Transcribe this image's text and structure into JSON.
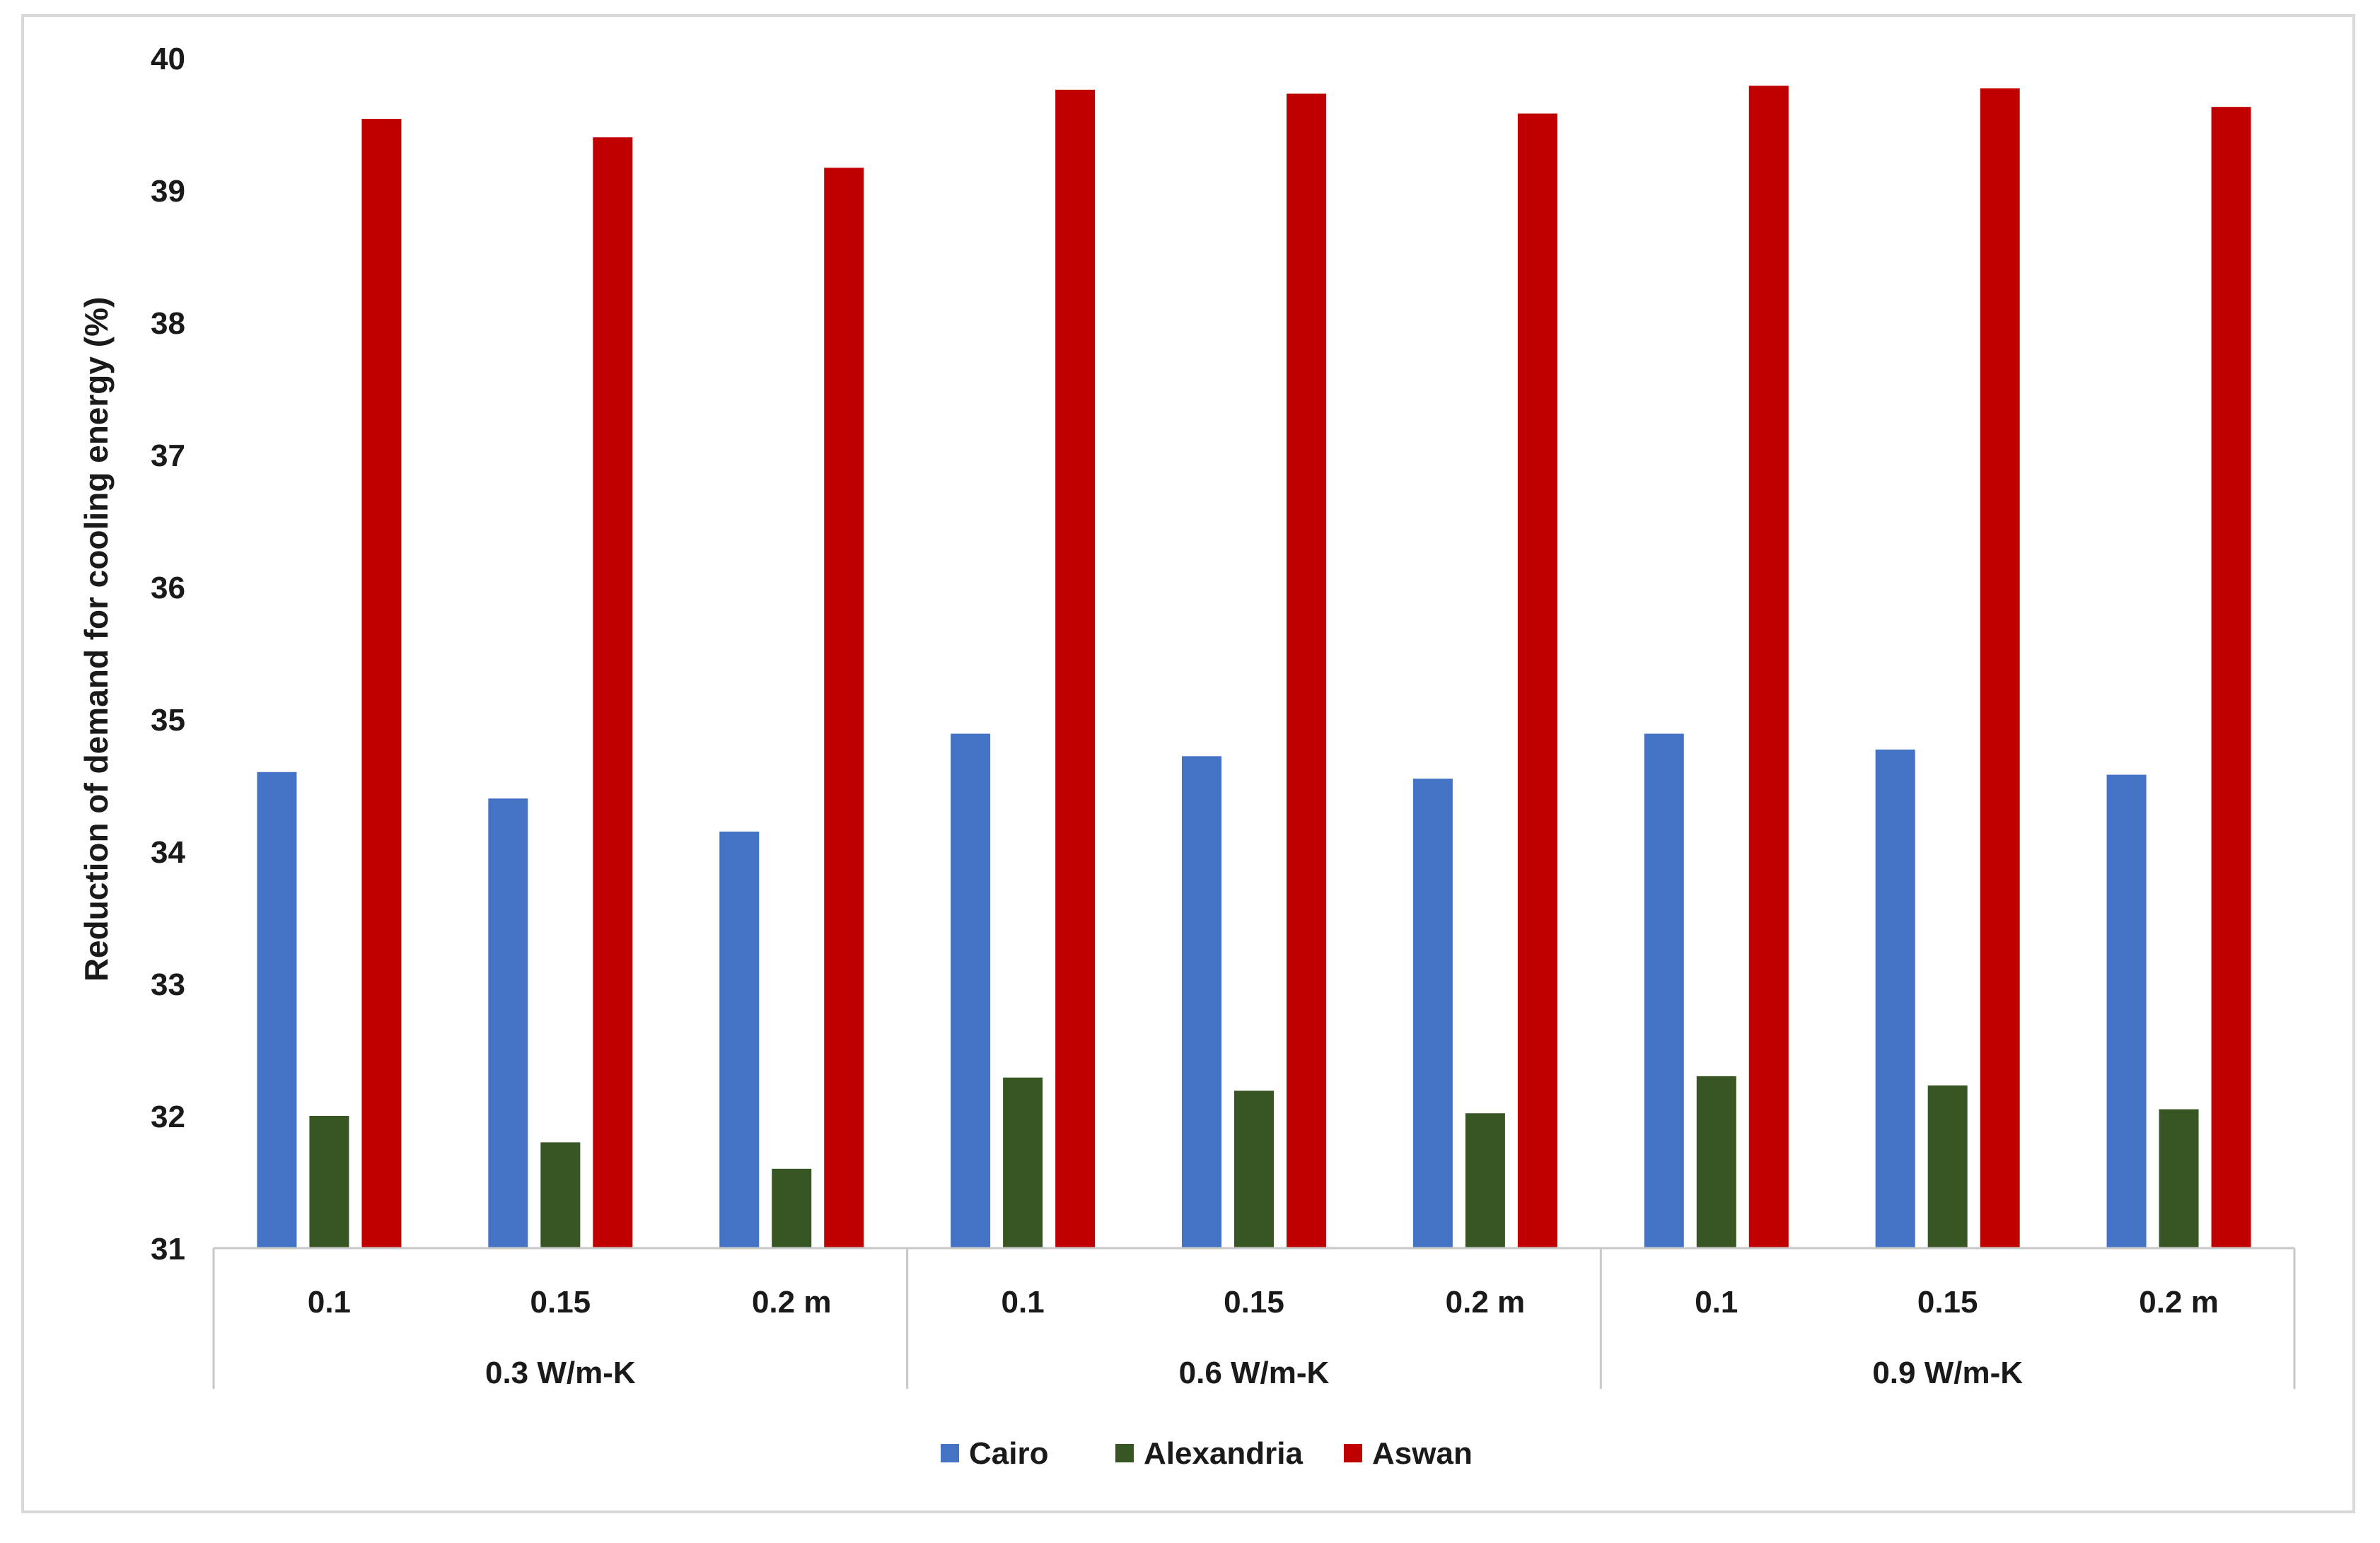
{
  "chart_data": {
    "type": "bar",
    "ylabel": "Reduction of demand for cooling energy (%)",
    "ylim": [
      31,
      40
    ],
    "yticks": [
      31,
      32,
      33,
      34,
      35,
      36,
      37,
      38,
      39,
      40
    ],
    "grid": false,
    "legend_position": "bottom",
    "groups": [
      {
        "label": "0.3 W/m-K",
        "categories": [
          "0.1",
          "0.15",
          "0.2 m"
        ]
      },
      {
        "label": "0.6 W/m-K",
        "categories": [
          "0.1",
          "0.15",
          "0.2 m"
        ]
      },
      {
        "label": "0.9 W/m-K",
        "categories": [
          "0.1",
          "0.15",
          "0.2 m"
        ]
      }
    ],
    "categories": [
      "0.1",
      "0.15",
      "0.2 m",
      "0.1",
      "0.15",
      "0.2 m",
      "0.1",
      "0.15",
      "0.2 m"
    ],
    "series": [
      {
        "name": "Cairo",
        "color": "#4472c4",
        "values": [
          34.6,
          34.4,
          34.15,
          34.89,
          34.72,
          34.55,
          34.89,
          34.77,
          34.58
        ]
      },
      {
        "name": "Alexandria",
        "color": "#375623",
        "values": [
          32.0,
          31.8,
          31.6,
          32.29,
          32.19,
          32.02,
          32.3,
          32.23,
          32.05
        ]
      },
      {
        "name": "Aswan",
        "color": "#c00000",
        "values": [
          39.54,
          39.4,
          39.17,
          39.76,
          39.73,
          39.58,
          39.79,
          39.77,
          39.63
        ]
      }
    ]
  }
}
